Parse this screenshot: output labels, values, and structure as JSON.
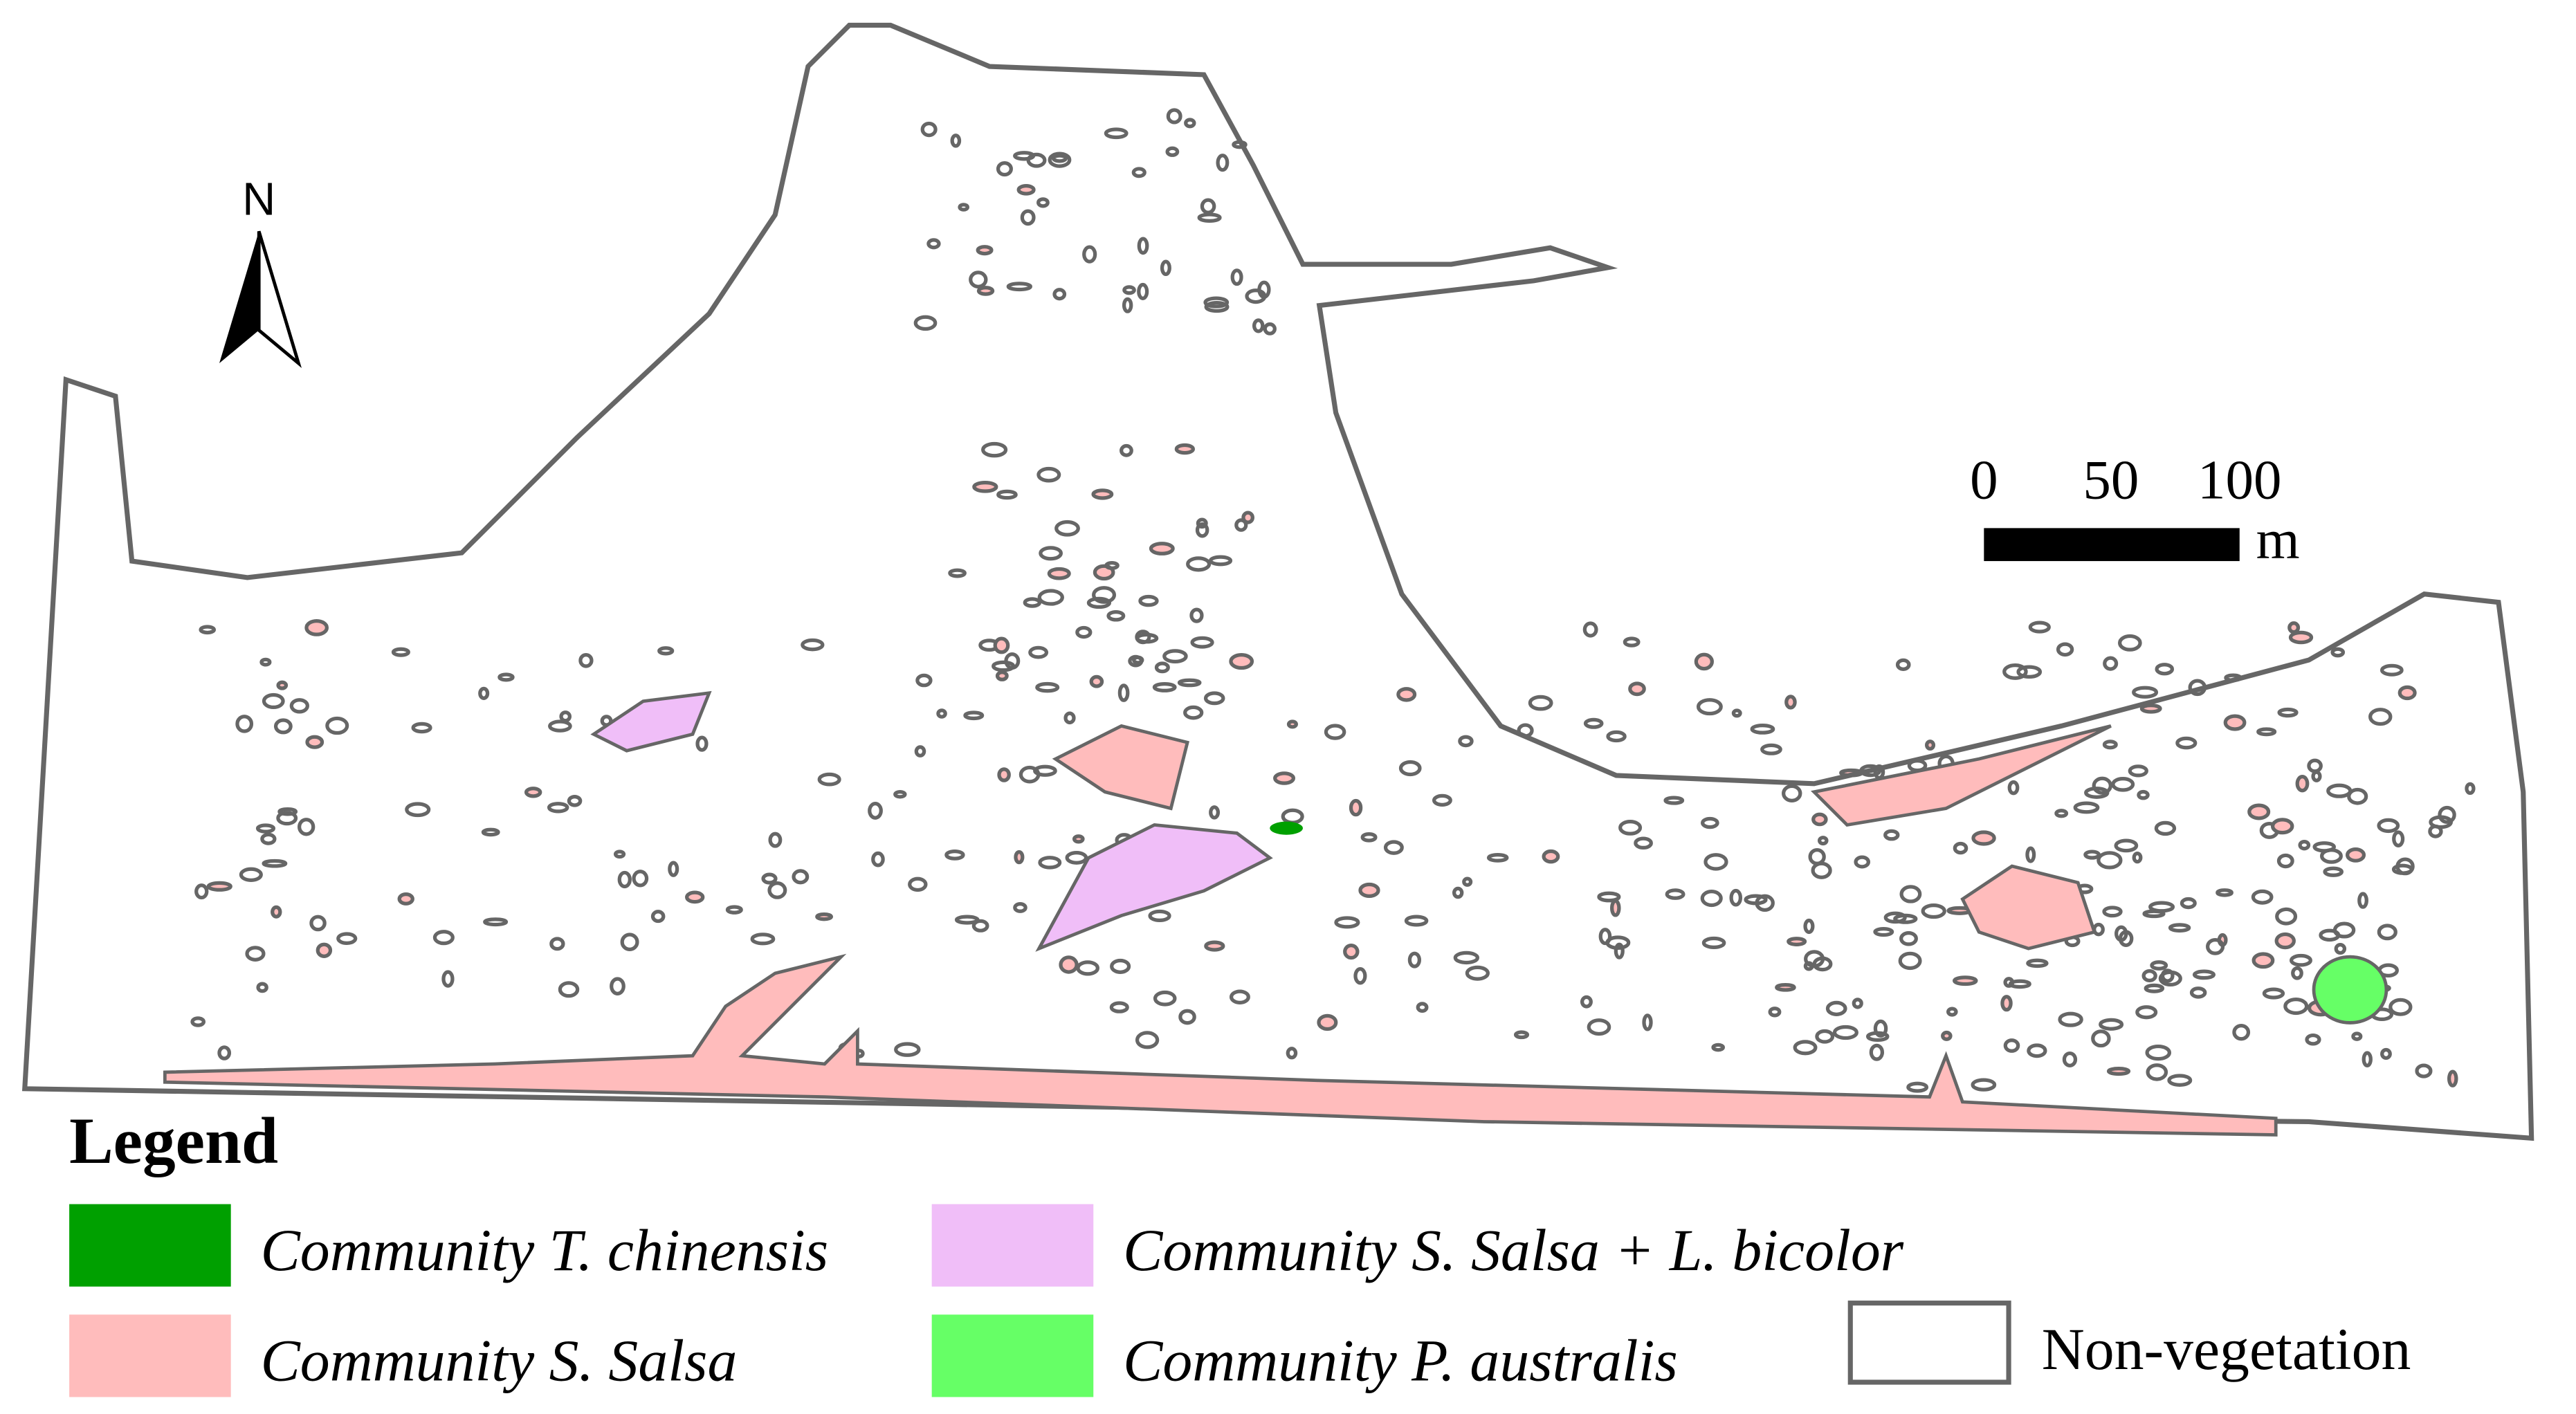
{
  "north_arrow": {
    "label": "N"
  },
  "scale_bar": {
    "labels": [
      "0",
      "50",
      "100"
    ],
    "unit": "m"
  },
  "legend": {
    "title": "Legend",
    "items": [
      {
        "label": "Community T. chinensis",
        "color": "#00a000"
      },
      {
        "label": "Community S. Salsa",
        "color": "#ffbcbc"
      },
      {
        "label": "Community S. Salsa + L. bicolor",
        "color": "#f0bef8"
      },
      {
        "label": "Community P. australis",
        "color": "#66ff66"
      },
      {
        "label": "Non-vegetation",
        "color": "#ffffff"
      }
    ]
  }
}
